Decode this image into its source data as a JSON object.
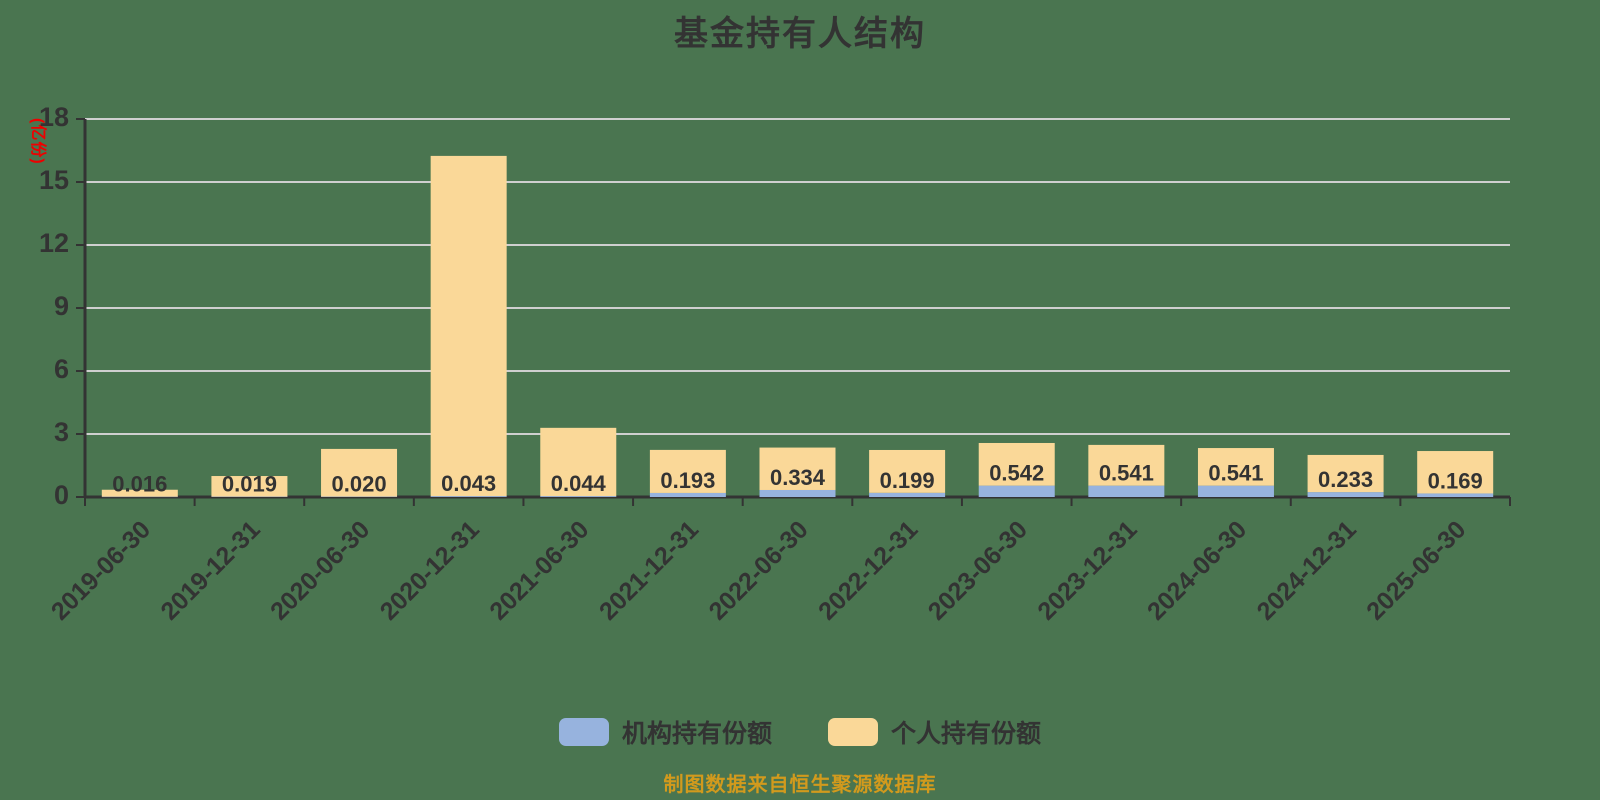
{
  "title": "基金持有人结构",
  "y_axis_unit": "(亿份)",
  "footer": "制图数据来自恒生聚源数据库",
  "colors": {
    "background": "#4a7550",
    "institutional": "#97b3de",
    "individual": "#fad898",
    "axis": "#333333",
    "gridline": "#cfcfcf",
    "unit_label": "#ee0000",
    "footer_text": "#d29a1d",
    "text": "#333333"
  },
  "legend": [
    {
      "label": "机构持有份额",
      "color": "#97b3de"
    },
    {
      "label": "个人持有份额",
      "color": "#fad898"
    }
  ],
  "chart_data": {
    "type": "bar",
    "stacked": true,
    "title": "基金持有人结构",
    "ylabel": "(亿份)",
    "xlabel": "",
    "grid": true,
    "legend_position": "bottom",
    "ylim": [
      0,
      18
    ],
    "yticks": [
      0,
      3,
      6,
      9,
      12,
      15,
      18
    ],
    "categories": [
      "2019-06-30",
      "2019-12-31",
      "2020-06-30",
      "2020-12-31",
      "2021-06-30",
      "2021-12-31",
      "2022-06-30",
      "2022-12-31",
      "2023-06-30",
      "2023-12-31",
      "2024-06-30",
      "2024-12-31",
      "2025-06-30"
    ],
    "series": [
      {
        "name": "机构持有份额",
        "color": "#97b3de",
        "values": [
          0.016,
          0.019,
          0.02,
          0.043,
          0.044,
          0.193,
          0.334,
          0.199,
          0.542,
          0.541,
          0.541,
          0.233,
          0.169
        ]
      },
      {
        "name": "个人持有份额",
        "color": "#fad898",
        "values": [
          0.33,
          0.98,
          2.27,
          16.2,
          3.25,
          2.05,
          2.02,
          2.04,
          2.03,
          1.94,
          1.79,
          1.77,
          2.02
        ]
      }
    ],
    "bar_labels": [
      "0.016",
      "0.019",
      "0.020",
      "0.043",
      "0.044",
      "0.193",
      "0.334",
      "0.199",
      "0.542",
      "0.541",
      "0.541",
      "0.233",
      "0.169"
    ]
  }
}
